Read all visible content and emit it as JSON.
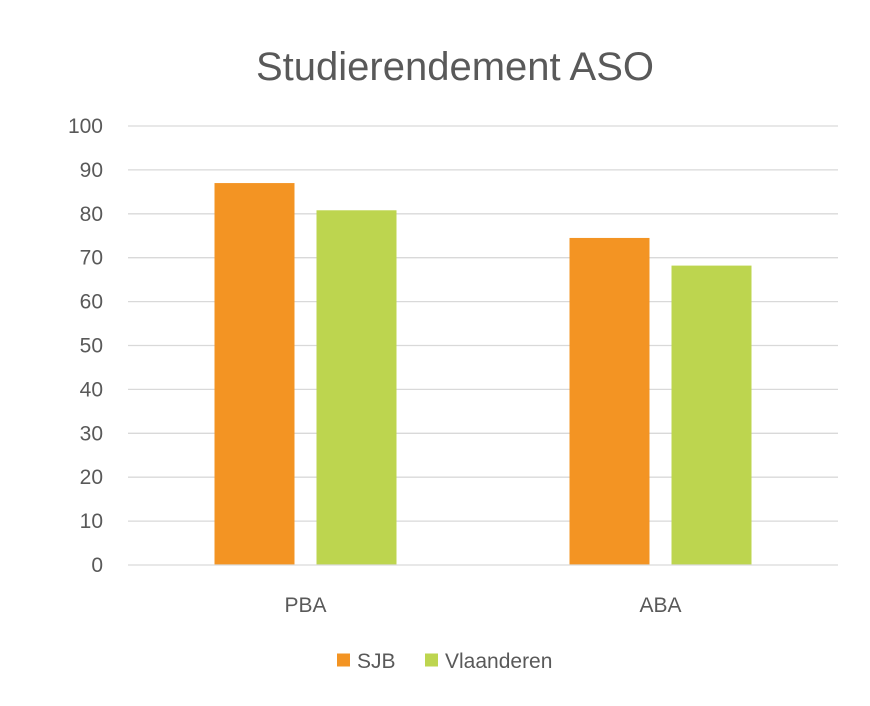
{
  "chart_data": {
    "type": "bar",
    "title": "Studierendement ASO",
    "xlabel": "",
    "ylabel": "",
    "categories": [
      "PBA",
      "ABA"
    ],
    "series": [
      {
        "name": "SJB",
        "color": "#f39423",
        "values": [
          87,
          74.5
        ]
      },
      {
        "name": "Vlaanderen",
        "color": "#bdd54f",
        "values": [
          80.8,
          68.2
        ]
      }
    ],
    "ylim": [
      0,
      100
    ],
    "yticks": [
      "0",
      "10",
      "20",
      "30",
      "40",
      "50",
      "60",
      "70",
      "80",
      "90",
      "100"
    ],
    "grid": true,
    "legend_position": "bottom"
  }
}
